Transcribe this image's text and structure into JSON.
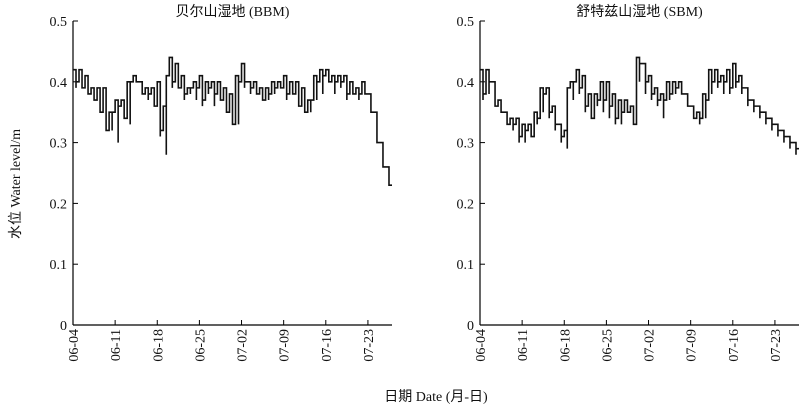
{
  "figure": {
    "ylabel": "水位 Water level/m",
    "xlabel": "日期 Date (月-日)"
  },
  "chart_data": [
    {
      "type": "line",
      "title": "贝尔山湿地 (BBM)",
      "xlabel": "",
      "ylabel": "水位 Water level/m",
      "ylim": [
        0,
        0.5
      ],
      "y_ticks": [
        "0",
        "0.1",
        "0.2",
        "0.3",
        "0.4",
        "0.5"
      ],
      "x_ticks": [
        "06-04",
        "06-11",
        "06-18",
        "06-25",
        "07-02",
        "07-09",
        "07-16",
        "07-23"
      ],
      "x_start": "06-04",
      "step": "daily, hourly fluctuation within each day",
      "series": [
        {
          "x": [
            "06-04",
            "06-05",
            "06-06",
            "06-07",
            "06-08",
            "06-09",
            "06-10",
            "06-11",
            "06-12",
            "06-13",
            "06-14",
            "06-15",
            "06-16",
            "06-17",
            "06-18",
            "06-19",
            "06-20",
            "06-21",
            "06-22",
            "06-23",
            "06-24",
            "06-25",
            "06-26",
            "06-27",
            "06-28",
            "06-29",
            "06-30",
            "07-01",
            "07-02",
            "07-03",
            "07-04",
            "07-05",
            "07-06",
            "07-07",
            "07-08",
            "07-09",
            "07-10",
            "07-11",
            "07-12",
            "07-13",
            "07-14",
            "07-15",
            "07-16",
            "07-17",
            "07-18",
            "07-19",
            "07-20",
            "07-21",
            "07-22",
            "07-23",
            "07-24",
            "07-25",
            "07-26"
          ],
          "lo": [
            0.39,
            0.4,
            0.39,
            0.38,
            0.37,
            0.35,
            0.32,
            0.3,
            0.34,
            0.33,
            0.4,
            0.38,
            0.37,
            0.36,
            0.31,
            0.28,
            0.39,
            0.39,
            0.37,
            0.38,
            0.37,
            0.36,
            0.38,
            0.36,
            0.37,
            0.35,
            0.33,
            0.33,
            0.39,
            0.38,
            0.38,
            0.37,
            0.37,
            0.38,
            0.39,
            0.37,
            0.38,
            0.36,
            0.35,
            0.35,
            0.37,
            0.38,
            0.4,
            0.38,
            0.39,
            0.37,
            0.38,
            0.37,
            0.38,
            0.35,
            0.3,
            0.26,
            0.23
          ],
          "hi": [
            0.42,
            0.42,
            0.41,
            0.39,
            0.39,
            0.39,
            0.35,
            0.37,
            0.37,
            0.4,
            0.41,
            0.4,
            0.39,
            0.39,
            0.4,
            0.36,
            0.44,
            0.43,
            0.41,
            0.39,
            0.4,
            0.41,
            0.4,
            0.4,
            0.4,
            0.39,
            0.38,
            0.41,
            0.43,
            0.4,
            0.4,
            0.39,
            0.39,
            0.4,
            0.4,
            0.41,
            0.4,
            0.4,
            0.39,
            0.37,
            0.41,
            0.42,
            0.42,
            0.41,
            0.41,
            0.41,
            0.4,
            0.39,
            0.4,
            0.38,
            0.35,
            0.3,
            0.26
          ],
          "end": [
            0.4,
            0.39,
            0.38,
            0.37,
            0.35,
            0.32,
            0.35,
            0.36,
            0.34,
            0.4,
            0.4,
            0.38,
            0.38,
            0.36,
            0.32,
            0.41,
            0.4,
            0.39,
            0.38,
            0.39,
            0.39,
            0.37,
            0.39,
            0.38,
            0.37,
            0.35,
            0.33,
            0.4,
            0.4,
            0.39,
            0.38,
            0.37,
            0.38,
            0.39,
            0.39,
            0.38,
            0.38,
            0.36,
            0.35,
            0.37,
            0.4,
            0.41,
            0.4,
            0.4,
            0.4,
            0.38,
            0.38,
            0.38,
            0.38,
            0.35,
            0.3,
            0.26,
            0.23
          ]
        }
      ]
    },
    {
      "type": "line",
      "title": "舒特兹山湿地 (SBM)",
      "xlabel": "",
      "ylabel": "",
      "ylim": [
        0,
        0.5
      ],
      "y_ticks": [
        "0",
        "0.1",
        "0.2",
        "0.3",
        "0.4",
        "0.5"
      ],
      "x_ticks": [
        "06-04",
        "06-11",
        "06-18",
        "06-25",
        "07-02",
        "07-09",
        "07-16",
        "07-23"
      ],
      "x_start": "06-04",
      "step": "daily, hourly fluctuation within each day",
      "series": [
        {
          "x": [
            "06-04",
            "06-05",
            "06-06",
            "06-07",
            "06-08",
            "06-09",
            "06-10",
            "06-11",
            "06-12",
            "06-13",
            "06-14",
            "06-15",
            "06-16",
            "06-17",
            "06-18",
            "06-19",
            "06-20",
            "06-21",
            "06-22",
            "06-23",
            "06-24",
            "06-25",
            "06-26",
            "06-27",
            "06-28",
            "06-29",
            "06-30",
            "07-01",
            "07-02",
            "07-03",
            "07-04",
            "07-05",
            "07-06",
            "07-07",
            "07-08",
            "07-09",
            "07-10",
            "07-11",
            "07-12",
            "07-13",
            "07-14",
            "07-15",
            "07-16",
            "07-17",
            "07-18",
            "07-19",
            "07-20",
            "07-21",
            "07-22",
            "07-23",
            "07-24",
            "07-25",
            "07-26"
          ],
          "lo": [
            0.37,
            0.38,
            0.37,
            0.35,
            0.33,
            0.32,
            0.3,
            0.3,
            0.31,
            0.33,
            0.35,
            0.34,
            0.32,
            0.3,
            0.29,
            0.37,
            0.38,
            0.35,
            0.34,
            0.36,
            0.35,
            0.34,
            0.33,
            0.33,
            0.35,
            0.33,
            0.4,
            0.38,
            0.37,
            0.36,
            0.34,
            0.37,
            0.38,
            0.38,
            0.36,
            0.34,
            0.33,
            0.34,
            0.38,
            0.39,
            0.38,
            0.38,
            0.39,
            0.38,
            0.36,
            0.35,
            0.34,
            0.33,
            0.32,
            0.31,
            0.3,
            0.29,
            0.28
          ],
          "hi": [
            0.42,
            0.42,
            0.4,
            0.37,
            0.35,
            0.34,
            0.34,
            0.33,
            0.33,
            0.35,
            0.39,
            0.39,
            0.36,
            0.33,
            0.32,
            0.4,
            0.42,
            0.41,
            0.38,
            0.38,
            0.4,
            0.4,
            0.38,
            0.37,
            0.37,
            0.36,
            0.44,
            0.43,
            0.41,
            0.39,
            0.38,
            0.4,
            0.4,
            0.4,
            0.38,
            0.36,
            0.35,
            0.38,
            0.42,
            0.42,
            0.41,
            0.42,
            0.43,
            0.41,
            0.39,
            0.37,
            0.36,
            0.35,
            0.34,
            0.33,
            0.32,
            0.31,
            0.3
          ],
          "end": [
            0.38,
            0.4,
            0.36,
            0.35,
            0.33,
            0.33,
            0.31,
            0.32,
            0.31,
            0.34,
            0.38,
            0.35,
            0.33,
            0.31,
            0.39,
            0.4,
            0.39,
            0.36,
            0.34,
            0.37,
            0.37,
            0.36,
            0.34,
            0.35,
            0.35,
            0.33,
            0.43,
            0.4,
            0.38,
            0.37,
            0.37,
            0.38,
            0.39,
            0.38,
            0.36,
            0.34,
            0.34,
            0.37,
            0.4,
            0.4,
            0.4,
            0.39,
            0.4,
            0.39,
            0.37,
            0.36,
            0.35,
            0.34,
            0.33,
            0.32,
            0.31,
            0.3,
            0.29
          ]
        }
      ]
    }
  ]
}
